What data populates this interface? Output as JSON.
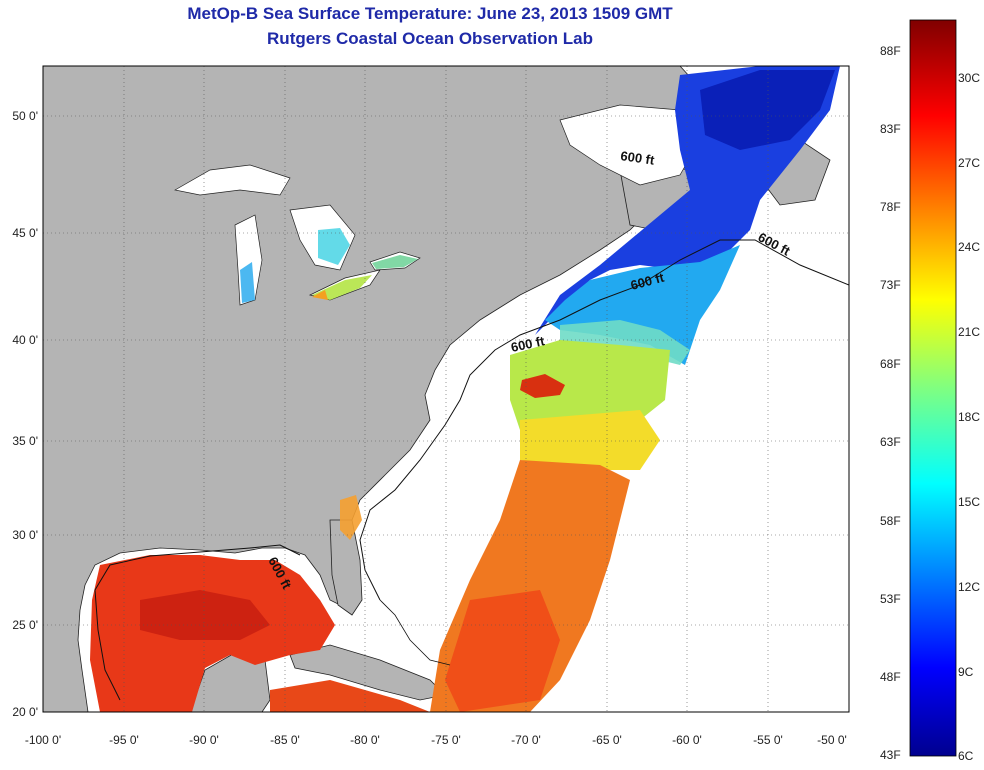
{
  "title_line1": "MetOp-B Sea Surface Temperature:  June 23, 2013 1509 GMT",
  "title_line2": "Rutgers Coastal Ocean Observation Lab",
  "lon_ticks": [
    "-100 0'",
    "-95 0'",
    "-90 0'",
    "-85 0'",
    "-80 0'",
    "-75 0'",
    "-70 0'",
    "-65 0'",
    "-60 0'",
    "-55 0'",
    "-50 0'"
  ],
  "lat_ticks": [
    "20 0'",
    "25 0'",
    "30 0'",
    "35 0'",
    "40 0'",
    "45 0'",
    "50 0'"
  ],
  "depth_labels": [
    "600 ft",
    "600 ft",
    "600 ft",
    "600 ft",
    "600 ft"
  ],
  "colorbar": {
    "f_labels": [
      "43F",
      "48F",
      "53F",
      "58F",
      "63F",
      "68F",
      "73F",
      "78F",
      "83F",
      "88F"
    ],
    "c_labels": [
      "6C",
      "9C",
      "12C",
      "15C",
      "18C",
      "21C",
      "24C",
      "27C",
      "30C"
    ]
  },
  "colors": {
    "land": "#b4b4b4",
    "ocean_nodata": "#ffffff",
    "title": "#1f2aa8"
  }
}
